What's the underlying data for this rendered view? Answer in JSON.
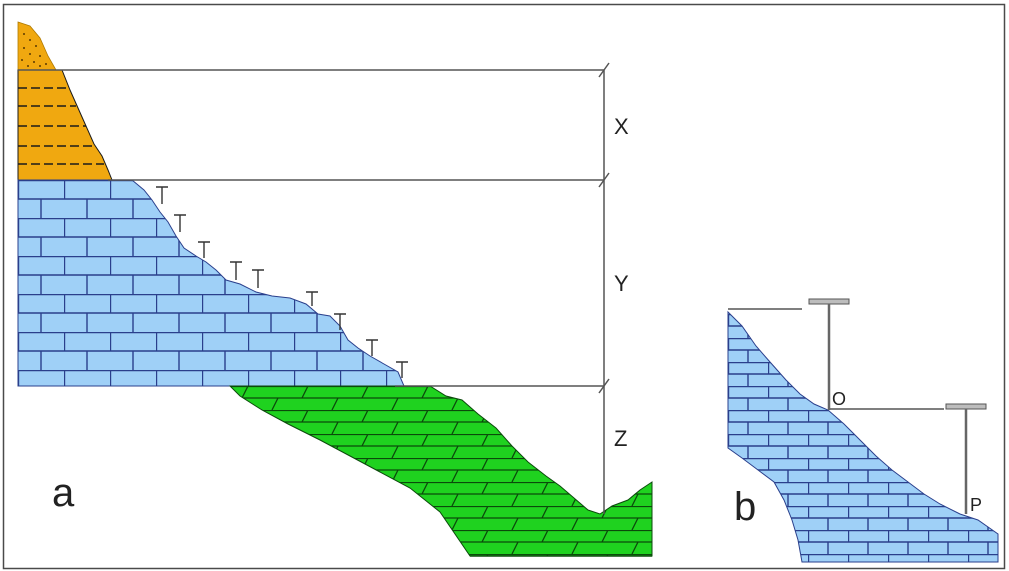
{
  "labels": {
    "panel_a": "a",
    "panel_b": "b",
    "interval_x": "X",
    "interval_y": "Y",
    "interval_z": "Z",
    "point_o": "O",
    "point_p": "P"
  },
  "colors": {
    "frame": "#4a4a4a",
    "line": "#555555",
    "sandstone": "#f0a810",
    "limestone": "#9fd0f7",
    "green_shale": "#1fd21f",
    "brick_line": "#2a3f8c",
    "shale_line": "#0b4a0b",
    "staff": "#666666"
  }
}
